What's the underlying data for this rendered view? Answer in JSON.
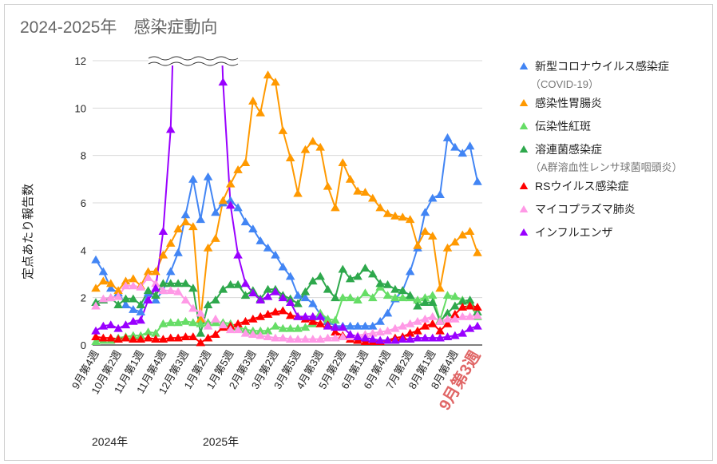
{
  "chart_data": {
    "type": "line",
    "title": "2024-2025年　感染症動向",
    "ylabel": "定点あたり報告数",
    "xlabel": "",
    "ylim": [
      0,
      12
    ],
    "yticks": [
      "0",
      "2",
      "4",
      "6",
      "8",
      "10",
      "12"
    ],
    "grid": true,
    "axis_break_note": "インフルエンザ exceeds 12 (axis break shown)",
    "legend_position": "right",
    "x_tick_labels": [
      "9月第4週",
      "10月第2週",
      "11月第1週",
      "11月第4週",
      "12月第3週",
      "1月第2週",
      "1月第5週",
      "2月第3週",
      "3月第2週",
      "3月第5週",
      "4月第3週",
      "5月第2週",
      "6月第1週",
      "6月第4週",
      "7月第2週",
      "8月第1週",
      "8月第4週",
      "9月第3週"
    ],
    "highlighted_tick": "9月第3週",
    "year_labels": [
      "2024年",
      "2025年"
    ],
    "n_points": 52,
    "series": [
      {
        "name": "新型コロナウイルス感染症",
        "sub": "（COVID-19）",
        "color": "#4285f4",
        "values": [
          3.6,
          3.1,
          2.4,
          2.2,
          1.7,
          1.5,
          1.4,
          2.2,
          1.9,
          2.3,
          3.1,
          3.9,
          5.5,
          7.0,
          5.3,
          7.1,
          5.6,
          6.0,
          6.1,
          5.8,
          5.2,
          4.9,
          4.4,
          4.1,
          3.8,
          3.3,
          2.9,
          2.1,
          2.0,
          1.75,
          1.3,
          1.0,
          0.8,
          0.8,
          0.8,
          0.8,
          0.8,
          0.8,
          1.0,
          1.35,
          1.95,
          2.3,
          3.1,
          4.1,
          5.6,
          6.2,
          6.35,
          8.75,
          8.35,
          8.1,
          8.4,
          6.9
        ]
      },
      {
        "name": "感染性胃腸炎",
        "color": "#ff9900",
        "values": [
          2.4,
          2.7,
          2.6,
          2.3,
          2.7,
          2.8,
          2.5,
          3.1,
          3.1,
          3.8,
          4.3,
          4.9,
          5.2,
          5.0,
          1.1,
          4.1,
          4.5,
          6.1,
          6.8,
          7.4,
          7.7,
          10.3,
          9.8,
          11.4,
          11.1,
          9.05,
          7.9,
          6.4,
          8.25,
          8.6,
          8.35,
          6.7,
          5.8,
          7.7,
          7.0,
          6.5,
          6.45,
          6.2,
          5.8,
          5.55,
          5.45,
          5.4,
          5.3,
          4.2,
          4.8,
          4.6,
          2.4,
          4.1,
          4.35,
          4.65,
          4.8,
          3.9
        ]
      },
      {
        "name": "伝染性紅斑",
        "color": "#66dd66",
        "values": [
          0.15,
          0.2,
          0.2,
          0.3,
          0.35,
          0.4,
          0.4,
          0.55,
          0.5,
          0.9,
          0.95,
          0.95,
          1.0,
          0.95,
          0.9,
          0.95,
          0.95,
          0.95,
          0.9,
          0.75,
          0.65,
          0.6,
          0.6,
          0.6,
          0.8,
          0.7,
          0.7,
          0.7,
          0.75,
          0.9,
          1.35,
          1.1,
          1.05,
          2.0,
          2.0,
          1.9,
          2.2,
          2.0,
          2.45,
          2.1,
          2.0,
          2.0,
          2.0,
          1.9,
          2.0,
          2.1,
          1.05,
          2.1,
          2.05,
          1.9,
          1.7,
          1.2
        ]
      },
      {
        "name": "溶連菌感染症",
        "sub": "（A群溶血性レンサ球菌咽頭炎）",
        "color": "#2ea84c",
        "values": [
          1.8,
          1.9,
          2.0,
          1.7,
          1.95,
          1.95,
          1.7,
          2.3,
          2.1,
          2.6,
          2.6,
          2.6,
          2.6,
          2.4,
          0.5,
          1.7,
          1.9,
          2.35,
          2.55,
          2.55,
          2.1,
          2.3,
          1.95,
          2.35,
          2.35,
          2.1,
          1.95,
          1.75,
          2.25,
          2.7,
          2.9,
          2.35,
          2.0,
          3.2,
          2.8,
          2.9,
          3.25,
          3.0,
          2.6,
          2.55,
          2.35,
          2.3,
          2.1,
          1.65,
          1.8,
          1.8,
          1.0,
          1.35,
          1.65,
          1.85,
          1.9,
          1.4
        ]
      },
      {
        "name": "RSウイルス感染症",
        "color": "#ff0000",
        "values": [
          0.35,
          0.3,
          0.3,
          0.25,
          0.3,
          0.25,
          0.25,
          0.3,
          0.25,
          0.25,
          0.3,
          0.3,
          0.35,
          0.35,
          0.1,
          0.3,
          0.45,
          0.75,
          0.8,
          0.9,
          1.0,
          1.1,
          1.2,
          1.3,
          1.4,
          1.45,
          1.25,
          1.2,
          1.1,
          1.0,
          0.9,
          0.85,
          0.55,
          0.4,
          0.25,
          0.2,
          0.15,
          0.15,
          0.15,
          0.2,
          0.3,
          0.35,
          0.5,
          0.6,
          0.8,
          0.9,
          0.6,
          0.9,
          1.3,
          1.6,
          1.65,
          1.6
        ]
      },
      {
        "name": "マイコプラズマ肺炎",
        "color": "#ff99e6",
        "values": [
          1.65,
          1.95,
          2.0,
          2.05,
          2.5,
          2.5,
          2.45,
          2.85,
          2.6,
          2.3,
          2.3,
          2.25,
          1.9,
          1.55,
          1.35,
          0.8,
          1.1,
          0.85,
          0.65,
          0.65,
          0.5,
          0.45,
          0.4,
          0.35,
          0.3,
          0.3,
          0.25,
          0.25,
          0.25,
          0.25,
          0.25,
          0.3,
          0.3,
          0.35,
          0.35,
          0.4,
          0.45,
          0.5,
          0.55,
          0.6,
          0.7,
          0.8,
          0.9,
          1.0,
          1.1,
          1.2,
          1.0,
          1.1,
          1.1,
          1.2,
          1.2,
          1.25
        ]
      },
      {
        "name": "インフルエンザ",
        "color": "#9900ff",
        "values": [
          0.6,
          0.8,
          0.85,
          0.7,
          0.85,
          1.0,
          1.05,
          1.9,
          2.4,
          4.8,
          9.1,
          null,
          null,
          null,
          null,
          null,
          null,
          11.1,
          5.9,
          3.8,
          2.6,
          2.2,
          1.9,
          2.05,
          2.25,
          2.0,
          1.8,
          1.2,
          1.2,
          1.2,
          1.2,
          0.8,
          0.75,
          0.75,
          0.45,
          0.35,
          0.3,
          0.25,
          0.2,
          0.2,
          0.2,
          0.25,
          0.25,
          0.3,
          0.3,
          0.3,
          0.3,
          0.35,
          0.4,
          0.5,
          0.7,
          0.8
        ]
      }
    ]
  }
}
